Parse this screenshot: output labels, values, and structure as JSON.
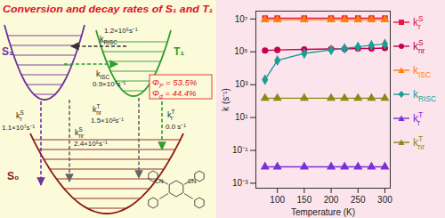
{
  "title": "Conversion and decay rates of S₁ and T₁",
  "diagram": {
    "states": [
      {
        "label": "S₁",
        "color": "#7030a0"
      },
      {
        "label": "T₁",
        "color": "#2e9e2e"
      },
      {
        "label": "S₀",
        "color": "#8b1a1a"
      }
    ],
    "transitions": [
      {
        "name": {
          "base": "k",
          "sub": "RISC"
        },
        "rate": "1.2×10⁵s⁻¹"
      },
      {
        "name": {
          "base": "k",
          "sub": "ISC"
        },
        "rate": "0.9×10⁷s⁻¹"
      },
      {
        "name": {
          "base": "k",
          "sub": "r",
          "sup": "S"
        },
        "rate": "1.1×10⁷s⁻¹"
      },
      {
        "name": {
          "base": "k",
          "sub": "nr",
          "sup": "S"
        },
        "rate": "2.4×10⁵s⁻¹"
      },
      {
        "name": {
          "base": "k",
          "sub": "nr",
          "sup": "T"
        },
        "rate": "1.5×10²s⁻¹"
      },
      {
        "name": {
          "base": "k",
          "sub": "r",
          "sup": "T"
        },
        "rate": "0.0 s⁻¹"
      }
    ],
    "yields": [
      {
        "base": "Φ",
        "sub": "P",
        "text": " = 53.5%"
      },
      {
        "base": "Φ",
        "sub": "d",
        "text": " = 44.4%"
      }
    ],
    "molecule_labels": [
      "CN",
      "CN"
    ]
  },
  "chart_data": {
    "type": "line",
    "x_label": "Temperature (K)",
    "y_label": "k (s⁻¹)",
    "x": [
      77,
      100,
      150,
      200,
      225,
      250,
      275,
      300
    ],
    "xlim": [
      60,
      310
    ],
    "xticks": [
      100,
      150,
      200,
      250,
      300
    ],
    "log": "y",
    "ylim": [
      0.0005,
      30000000
    ],
    "yticks": [
      {
        "value": 0.001,
        "label": "10⁻³"
      },
      {
        "value": 0.1,
        "label": "10⁻¹"
      },
      {
        "value": 10,
        "label": "10¹"
      },
      {
        "value": 1000,
        "label": "10³"
      },
      {
        "value": 100000,
        "label": "10⁵"
      },
      {
        "value": 10000000,
        "label": "10⁷"
      }
    ],
    "grid": false,
    "legend": "right",
    "series": [
      {
        "name": {
          "base": "k",
          "sub": "r",
          "sup": "S"
        },
        "color": "#e8173f",
        "marker": "square",
        "values": [
          11000000,
          11000000,
          11000000,
          11000000,
          11000000,
          11000000,
          11000000,
          11000000
        ]
      },
      {
        "name": {
          "base": "k",
          "sub": "nr",
          "sup": "S"
        },
        "color": "#c4004e",
        "marker": "circle",
        "values": [
          120000,
          130000,
          140000,
          150000,
          150000,
          160000,
          160000,
          170000
        ]
      },
      {
        "name": {
          "base": "k",
          "sub": "ISC"
        },
        "color": "#ff7f0e",
        "marker": "triangle",
        "values": [
          9000000,
          9000000,
          9000000,
          9000000,
          9000000,
          9000000,
          9000000,
          9000000
        ]
      },
      {
        "name": {
          "base": "k",
          "sub": "RISC"
        },
        "color": "#1a9e96",
        "marker": "diamond",
        "values": [
          2000,
          30000,
          80000,
          130000,
          160000,
          200000,
          250000,
          300000
        ]
      },
      {
        "name": {
          "base": "k",
          "sub": "r",
          "sup": "T"
        },
        "color": "#7b2fd6",
        "marker": "triangle",
        "values": [
          0.01,
          0.01,
          0.01,
          0.01,
          0.01,
          0.01,
          0.01,
          0.01
        ]
      },
      {
        "name": {
          "base": "k",
          "sub": "nr",
          "sup": "T"
        },
        "color": "#8a8a16",
        "marker": "triangle",
        "values": [
          150,
          150,
          150,
          150,
          150,
          150,
          150,
          150
        ]
      }
    ]
  }
}
